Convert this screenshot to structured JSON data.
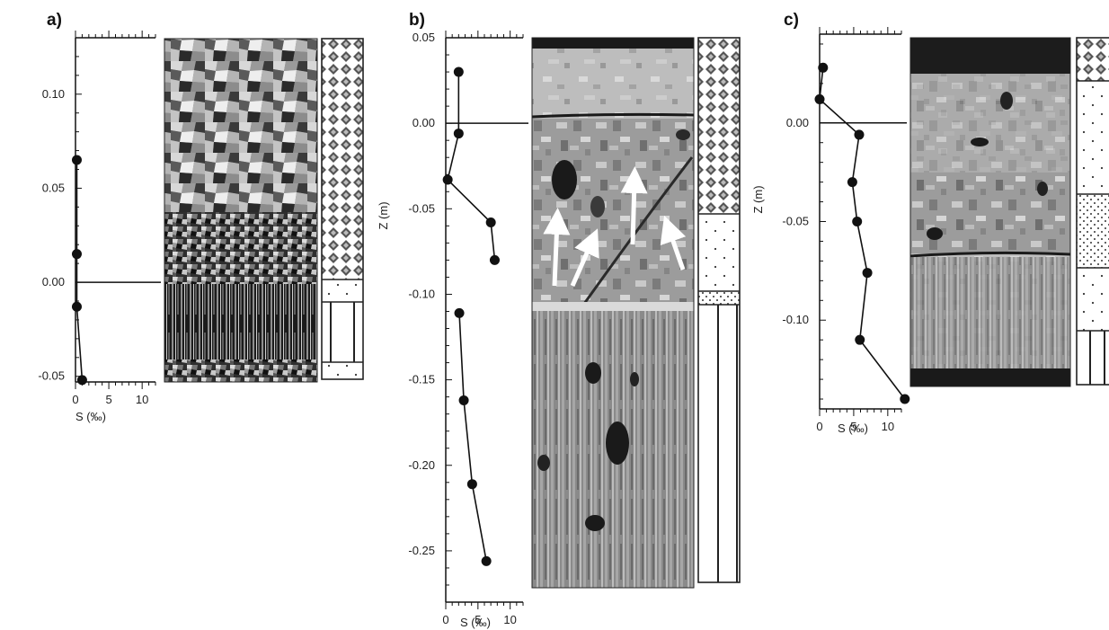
{
  "panels": [
    {
      "label": "a)",
      "xlabel": "S (‰)",
      "ylabel": "",
      "chart_data": {
        "type": "scatter",
        "xlabel": "S (‰)",
        "ylabel": "",
        "xlim": [
          0,
          12
        ],
        "ylim": [
          -0.053,
          0.13
        ],
        "xticks": [
          0,
          5,
          10
        ],
        "yticks": [
          0.1,
          0.05,
          0.0,
          -0.05
        ],
        "x": [
          0.2,
          0.2,
          0.2,
          1.0
        ],
        "y": [
          0.065,
          0.015,
          -0.013,
          -0.052
        ],
        "refline_y": 0.0
      },
      "strata": [
        "granular",
        "granular",
        "granular",
        "columnar",
        "frazil"
      ]
    },
    {
      "label": "b)",
      "xlabel": "S (‰)",
      "ylabel": "Z (m)",
      "chart_data": {
        "type": "line",
        "xlabel": "S (‰)",
        "ylabel": "Z (m)",
        "xlim": [
          0,
          12
        ],
        "ylim": [
          -0.28,
          0.05
        ],
        "xticks": [
          0,
          5,
          10
        ],
        "yticks": [
          0.05,
          0.0,
          -0.05,
          -0.1,
          -0.15,
          -0.2,
          -0.25
        ],
        "series": [
          {
            "x": [
              2.0,
              2.0,
              0.3,
              7.0,
              7.6
            ],
            "y": [
              0.03,
              -0.006,
              -0.033,
              -0.058,
              -0.08
            ]
          },
          {
            "x": [
              2.1,
              2.8,
              4.1,
              6.3
            ],
            "y": [
              -0.111,
              -0.162,
              -0.211,
              -0.256
            ]
          }
        ],
        "refline_y": 0.0
      },
      "strata": [
        "granular",
        "frazil",
        "transition",
        "columnar"
      ]
    },
    {
      "label": "c)",
      "xlabel": "S (‰)",
      "ylabel": "Z (m)",
      "chart_data": {
        "type": "line",
        "xlabel": "S (‰)",
        "ylabel": "Z (m)",
        "xlim": [
          0,
          12
        ],
        "ylim": [
          -0.145,
          0.045
        ],
        "xticks": [
          0,
          5,
          10
        ],
        "yticks": [
          0.0,
          -0.05,
          -0.1
        ],
        "x": [
          0.5,
          0.0,
          5.8,
          4.8,
          5.5,
          7.0,
          5.9,
          12.5
        ],
        "y": [
          0.028,
          0.012,
          -0.006,
          -0.03,
          -0.05,
          -0.076,
          -0.11,
          -0.14
        ],
        "refline_y": 0.0
      },
      "strata": [
        "granular",
        "frazil",
        "snow-ice",
        "frazil",
        "columnar"
      ]
    }
  ]
}
